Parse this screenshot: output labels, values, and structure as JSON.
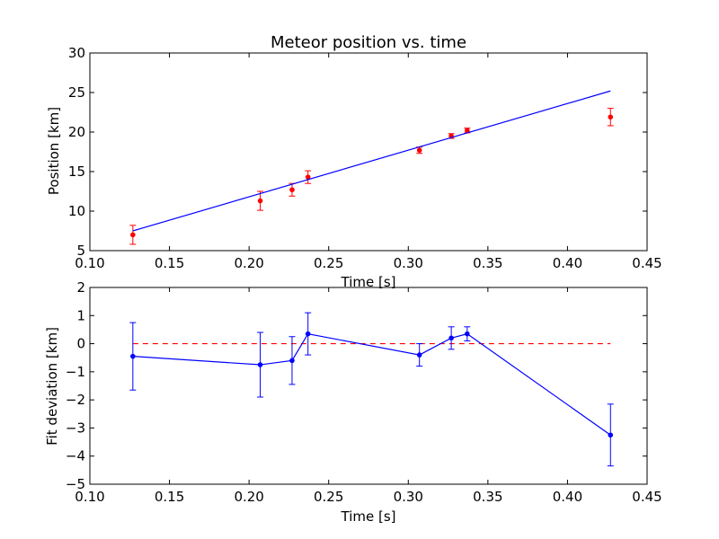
{
  "chart_data": [
    {
      "type": "scatter",
      "title": "Meteor position vs. time",
      "xlabel": "Time [s]",
      "ylabel": "Position [km]",
      "xlim": [
        0.1,
        0.45
      ],
      "ylim": [
        5,
        30
      ],
      "xticks": [
        "0.10",
        "0.15",
        "0.20",
        "0.25",
        "0.30",
        "0.35",
        "0.40",
        "0.45"
      ],
      "yticks": [
        "5",
        "10",
        "15",
        "20",
        "25",
        "30"
      ],
      "grid": false,
      "series": [
        {
          "kind": "errorbar-points",
          "color": "#ff0000",
          "x": [
            0.127,
            0.207,
            0.227,
            0.237,
            0.307,
            0.327,
            0.337,
            0.427
          ],
          "y": [
            7.0,
            11.3,
            12.7,
            14.3,
            17.7,
            19.5,
            20.2,
            21.9
          ],
          "yerr": [
            1.2,
            1.2,
            0.8,
            0.8,
            0.4,
            0.3,
            0.3,
            1.1
          ]
        },
        {
          "kind": "fit-line",
          "color": "#0000ff",
          "x": [
            0.127,
            0.427
          ],
          "y": [
            7.5,
            25.2
          ]
        }
      ]
    },
    {
      "type": "line",
      "title": "",
      "xlabel": "Time [s]",
      "ylabel": "Fit deviation [km]",
      "xlim": [
        0.1,
        0.45
      ],
      "ylim": [
        -5,
        2
      ],
      "xticks": [
        "0.10",
        "0.15",
        "0.20",
        "0.25",
        "0.30",
        "0.35",
        "0.40",
        "0.45"
      ],
      "yticks": [
        "−5",
        "−4",
        "−3",
        "−2",
        "−1",
        "0",
        "1",
        "2"
      ],
      "grid": false,
      "series": [
        {
          "kind": "zero-line",
          "color": "#ff0000",
          "dashed": true,
          "x": [
            0.127,
            0.427
          ],
          "y": [
            0,
            0
          ]
        },
        {
          "kind": "errorbar-line",
          "color": "#0000ff",
          "x": [
            0.127,
            0.207,
            0.227,
            0.237,
            0.307,
            0.327,
            0.337,
            0.427
          ],
          "y": [
            -0.45,
            -0.75,
            -0.6,
            0.35,
            -0.4,
            0.2,
            0.35,
            -3.25
          ],
          "yerr": [
            1.2,
            1.15,
            0.85,
            0.75,
            0.4,
            0.4,
            0.25,
            1.1
          ]
        }
      ]
    }
  ]
}
